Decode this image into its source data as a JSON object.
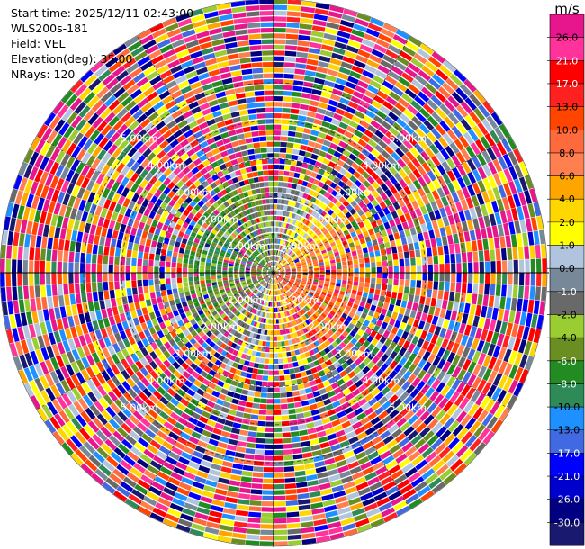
{
  "info": {
    "start_time": "Start time: 2025/12/11 02:43:00",
    "station": "WLS200s-181",
    "field": "Field: VEL",
    "elevation": "Elevation(deg): 35.00",
    "nrays": "NRays: 120"
  },
  "chart_data": {
    "type": "heatmap",
    "projection": "polar-ppi",
    "field": "VEL",
    "nrays": 120,
    "elevation_deg": 35.0,
    "max_range_km": 7.2,
    "range_rings_km": [
      1,
      2,
      3,
      4,
      5
    ],
    "ring_labels": [
      "1.00km",
      "2.00km",
      "3.00km",
      "4.00km",
      "5.00km"
    ],
    "colorbar": {
      "unit": "m/s",
      "ticks": [
        "26.0",
        "21.0",
        "17.0",
        "13.0",
        "10.0",
        "8.0",
        "6.0",
        "4.0",
        "2.0",
        "1.0",
        "0.0",
        "-1.0",
        "-2.0",
        "-4.0",
        "-6.0",
        "-8.0",
        "-10.0",
        "-13.0",
        "-17.0",
        "-21.0",
        "-26.0",
        "-30.0"
      ],
      "colors": [
        "#e8168c",
        "#ff3399",
        "#ff0000",
        "#ff2020",
        "#ff4500",
        "#ff6a3d",
        "#ff7f50",
        "#ffa500",
        "#ffd700",
        "#ffff00",
        "#b0c4de",
        "#778899",
        "#696969",
        "#9acd32",
        "#6b8e23",
        "#228b22",
        "#2e8b57",
        "#1e90ff",
        "#4169e1",
        "#0000ff",
        "#0000cd",
        "#000080",
        "#191970"
      ]
    }
  }
}
